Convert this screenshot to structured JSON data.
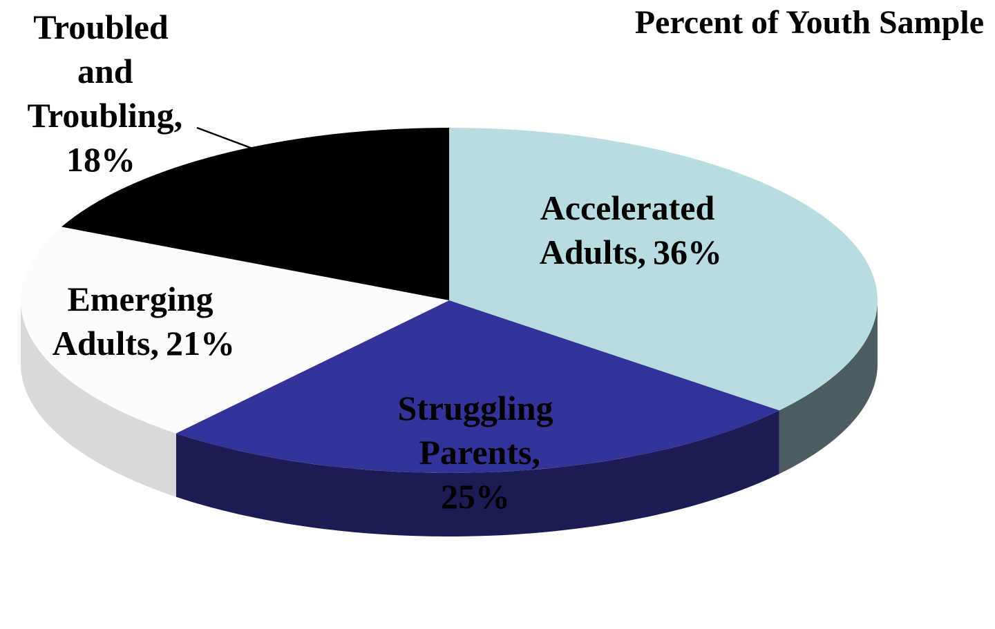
{
  "chart_data": {
    "type": "pie3d",
    "title": "Percent of Youth Sample",
    "categories": [
      "Accelerated Adults,",
      "Struggling Parents,",
      "Emerging Adults,",
      "Troubled and Troubling,"
    ],
    "values": [
      36,
      25,
      21,
      18
    ],
    "value_labels": [
      "36%",
      "25%",
      "21%",
      "18%"
    ],
    "colors": [
      "#b8dde1",
      "#333399",
      "#fcfcfc",
      "#000000"
    ]
  }
}
